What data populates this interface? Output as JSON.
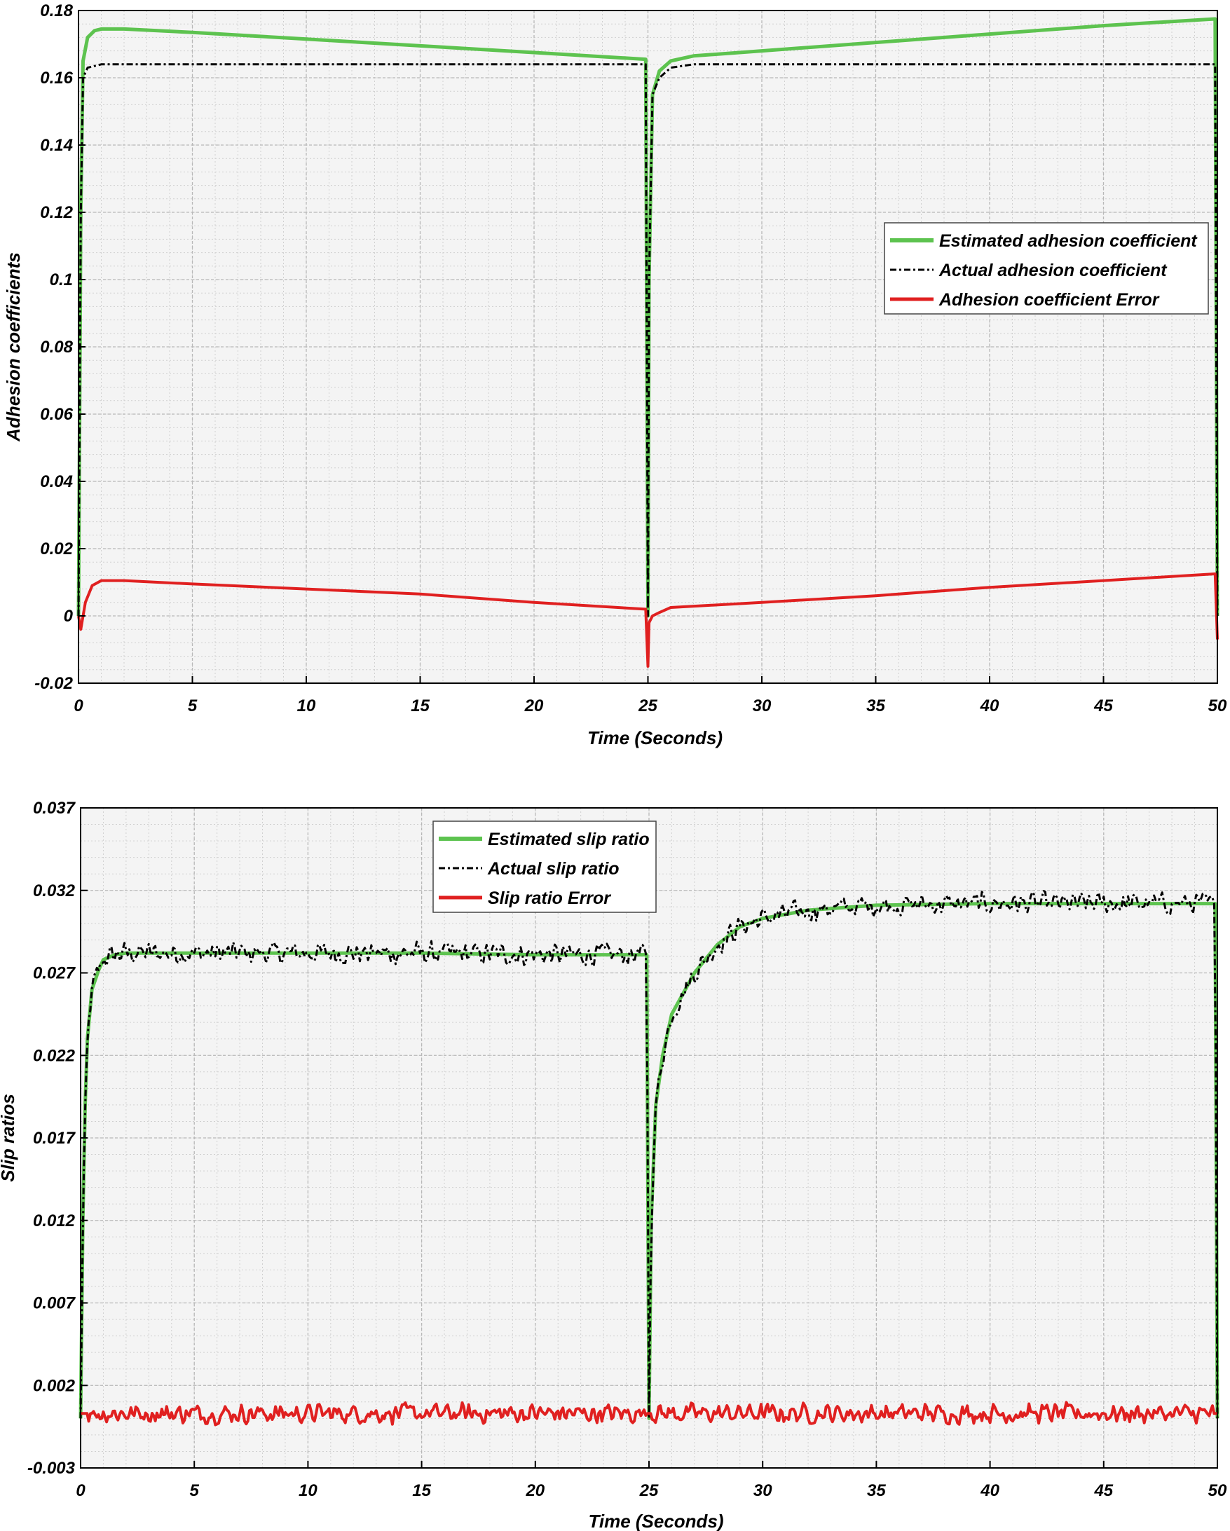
{
  "chart_data": [
    {
      "type": "line",
      "xlabel": "Time (Seconds)",
      "ylabel": "Adhesion coefficients",
      "xlim": [
        0,
        50
      ],
      "ylim": [
        -0.02,
        0.18
      ],
      "xticks": [
        0,
        5,
        10,
        15,
        20,
        25,
        30,
        35,
        40,
        45,
        50
      ],
      "xtick_labels": [
        "0",
        "5",
        "10",
        "15",
        "20",
        "25",
        "30",
        "35",
        "40",
        "45",
        "50"
      ],
      "yticks": [
        -0.02,
        0,
        0.02,
        0.04,
        0.06,
        0.08,
        0.1,
        0.12,
        0.14,
        0.16,
        0.18
      ],
      "ytick_labels": [
        "-0.02",
        "0",
        "0.02",
        "0.04",
        "0.06",
        "0.08",
        "0.1",
        "0.12",
        "0.14",
        "0.16",
        "0.18"
      ],
      "grid": true,
      "legend_position": "right",
      "series": [
        {
          "name": "Estimated adhesion coefficient",
          "color": "#5dc34f",
          "style": "solid",
          "x": [
            0,
            0.1,
            0.2,
            0.4,
            0.7,
            1,
            2,
            5,
            10,
            15,
            20,
            24.9,
            25,
            25.05,
            25.2,
            25.5,
            26,
            27,
            30,
            35,
            40,
            45,
            49.9,
            50
          ],
          "y": [
            0,
            0.12,
            0.165,
            0.172,
            0.174,
            0.1745,
            0.1745,
            0.1735,
            0.1715,
            0.1695,
            0.1675,
            0.1655,
            0.0,
            0.1,
            0.155,
            0.162,
            0.165,
            0.1665,
            0.168,
            0.1705,
            0.173,
            0.1755,
            0.1775,
            0.0
          ]
        },
        {
          "name": "Actual adhesion coefficient",
          "color": "#000000",
          "style": "dashdot",
          "x": [
            0,
            0.1,
            0.2,
            0.4,
            0.7,
            1,
            5,
            10,
            15,
            20,
            24.9,
            25,
            25.05,
            25.2,
            25.5,
            26,
            27,
            30,
            35,
            40,
            45,
            49.9,
            50
          ],
          "y": [
            0,
            0.12,
            0.16,
            0.163,
            0.1635,
            0.164,
            0.164,
            0.164,
            0.164,
            0.164,
            0.164,
            0.0,
            0.1,
            0.155,
            0.16,
            0.163,
            0.164,
            0.164,
            0.164,
            0.164,
            0.164,
            0.164,
            0.0
          ]
        },
        {
          "name": "Adhesion coefficient Error",
          "color": "#e02020",
          "style": "solid",
          "x": [
            0,
            0.1,
            0.3,
            0.6,
            1,
            2,
            5,
            10,
            15,
            20,
            24.9,
            25,
            25.05,
            25.2,
            25.5,
            26,
            30,
            35,
            40,
            45,
            49.9,
            50
          ],
          "y": [
            0,
            -0.004,
            0.004,
            0.009,
            0.0105,
            0.0105,
            0.0095,
            0.008,
            0.0065,
            0.004,
            0.002,
            -0.015,
            -0.002,
            0.0,
            0.001,
            0.0025,
            0.004,
            0.006,
            0.0085,
            0.0105,
            0.0125,
            -0.007
          ]
        }
      ]
    },
    {
      "type": "line",
      "xlabel": "Time (Seconds)",
      "ylabel": "Slip ratios",
      "xlim": [
        0,
        50
      ],
      "ylim": [
        -0.003,
        0.037
      ],
      "xticks": [
        0,
        5,
        10,
        15,
        20,
        25,
        30,
        35,
        40,
        45,
        50
      ],
      "xtick_labels": [
        "0",
        "5",
        "10",
        "15",
        "20",
        "25",
        "30",
        "35",
        "40",
        "45",
        "50"
      ],
      "yticks": [
        -0.003,
        0.002,
        0.007,
        0.012,
        0.017,
        0.022,
        0.027,
        0.032,
        0.037
      ],
      "ytick_labels": [
        "-0.003",
        "0.002",
        "0.007",
        "0.012",
        "0.017",
        "0.022",
        "0.027",
        "0.032",
        "0.037"
      ],
      "grid": true,
      "legend_position": "top-center",
      "series": [
        {
          "name": "Estimated slip ratio",
          "color": "#5dc34f",
          "style": "solid",
          "x": [
            0,
            0.1,
            0.2,
            0.3,
            0.5,
            0.8,
            1,
            1.5,
            2,
            5,
            10,
            15,
            20,
            24.9,
            25,
            25.1,
            25.3,
            25.6,
            26,
            27,
            28,
            29,
            30,
            32,
            35,
            40,
            45,
            49.9,
            50
          ],
          "y": [
            0,
            0.012,
            0.019,
            0.023,
            0.026,
            0.0272,
            0.0278,
            0.0281,
            0.0282,
            0.0282,
            0.0282,
            0.0282,
            0.0281,
            0.0281,
            0.0,
            0.012,
            0.019,
            0.022,
            0.0245,
            0.027,
            0.0287,
            0.0298,
            0.0303,
            0.0308,
            0.0311,
            0.0312,
            0.0312,
            0.0312,
            0.0
          ]
        },
        {
          "name": "Actual slip ratio",
          "color": "#000000",
          "style": "dashdot",
          "noise": 0.0008,
          "x": [
            0,
            0.1,
            0.2,
            0.3,
            0.5,
            0.8,
            1,
            1.5,
            2,
            5,
            10,
            15,
            20,
            24.9,
            25,
            25.1,
            25.3,
            25.6,
            26,
            27,
            28,
            29,
            30,
            32,
            35,
            40,
            45,
            49.9,
            50
          ],
          "y": [
            0,
            0.012,
            0.019,
            0.023,
            0.026,
            0.0272,
            0.0278,
            0.0281,
            0.0282,
            0.0282,
            0.0282,
            0.0282,
            0.0281,
            0.0281,
            0.0,
            0.012,
            0.019,
            0.022,
            0.0245,
            0.027,
            0.0287,
            0.0298,
            0.0303,
            0.0308,
            0.0311,
            0.0312,
            0.0312,
            0.0312,
            0.0
          ]
        },
        {
          "name": "Slip ratio Error",
          "color": "#e02020",
          "style": "solid",
          "noise": 0.0007,
          "x": [
            0,
            25,
            50
          ],
          "y": [
            0.0003,
            0.0003,
            0.0003
          ]
        }
      ]
    }
  ]
}
